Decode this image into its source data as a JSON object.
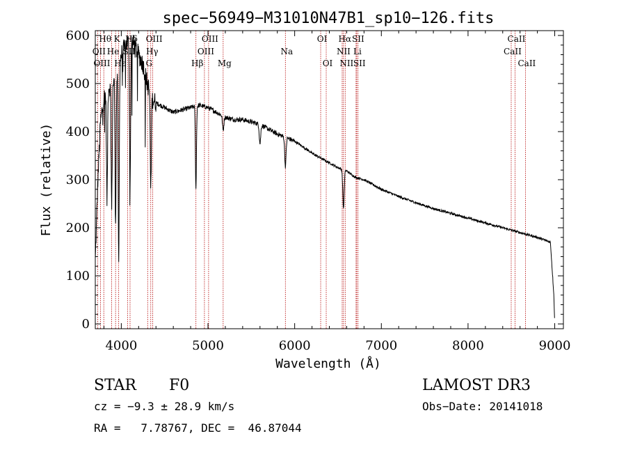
{
  "chart_data": {
    "type": "line",
    "title": "spec−56949−M31010N47B1_sp10−126.fits",
    "xlabel": "Wavelength (Å)",
    "ylabel": "Flux (relative)",
    "xlim": [
      3700,
      9100
    ],
    "ylim": [
      -10,
      610
    ],
    "xticks": [
      4000,
      5000,
      6000,
      7000,
      8000,
      9000
    ],
    "yticks": [
      0,
      100,
      200,
      300,
      400,
      500,
      600
    ],
    "grid": false,
    "colors": {
      "spectrum": "#000000",
      "line_marker": "#b30000",
      "frame": "#000000"
    },
    "continuum": {
      "x": [
        3700,
        3730,
        3760,
        3800,
        3850,
        3900,
        3950,
        4000,
        4050,
        4100,
        4150,
        4200,
        4250,
        4300,
        4350,
        4400,
        4500,
        4600,
        4700,
        4800,
        4900,
        5000,
        5100,
        5200,
        5300,
        5400,
        5500,
        5600,
        5700,
        5800,
        5900,
        6000,
        6100,
        6200,
        6300,
        6400,
        6500,
        6600,
        6700,
        6800,
        6900,
        7000,
        7200,
        7400,
        7600,
        7800,
        8000,
        8200,
        8400,
        8600,
        8800,
        8950,
        8990,
        9000
      ],
      "y": [
        130,
        300,
        420,
        470,
        490,
        500,
        520,
        560,
        580,
        590,
        580,
        560,
        540,
        500,
        470,
        460,
        450,
        440,
        445,
        450,
        455,
        450,
        440,
        430,
        425,
        425,
        420,
        415,
        405,
        395,
        388,
        380,
        368,
        355,
        345,
        335,
        325,
        318,
        305,
        300,
        290,
        280,
        265,
        252,
        240,
        230,
        220,
        210,
        200,
        190,
        180,
        170,
        60,
        0
      ]
    },
    "absorption_features": [
      {
        "x": 3835,
        "depth": 230
      },
      {
        "x": 3889,
        "depth": 260
      },
      {
        "x": 3934,
        "depth": 300
      },
      {
        "x": 3970,
        "depth": 420
      },
      {
        "x": 4101,
        "depth": 310
      },
      {
        "x": 4340,
        "depth": 200
      },
      {
        "x": 4861,
        "depth": 170
      },
      {
        "x": 5175,
        "depth": 30
      },
      {
        "x": 5600,
        "depth": 40
      },
      {
        "x": 5893,
        "depth": 60
      },
      {
        "x": 6563,
        "depth": 80
      }
    ],
    "line_markers": [
      {
        "label": "Hθ",
        "x": 3798,
        "row": 1
      },
      {
        "label": "OII",
        "x": 3727,
        "row": 2
      },
      {
        "label": "OIII",
        "x": 3760,
        "row": 3
      },
      {
        "label": "He",
        "x": 3889,
        "row": 2
      },
      {
        "label": "K",
        "x": 3934,
        "row": 1
      },
      {
        "label": "Hε",
        "x": 3970,
        "row": 3
      },
      {
        "label": "SII",
        "x": 4072,
        "row": 2
      },
      {
        "label": "Hδ",
        "x": 4101,
        "row": 1
      },
      {
        "label": "G",
        "x": 4304,
        "row": 3
      },
      {
        "label": "Hγ",
        "x": 4340,
        "row": 2
      },
      {
        "label": "OIII",
        "x": 4363,
        "row": 1
      },
      {
        "label": "Hβ",
        "x": 4861,
        "row": 3
      },
      {
        "label": "OIII",
        "x": 4959,
        "row": 2
      },
      {
        "label": "OIII",
        "x": 5007,
        "row": 1
      },
      {
        "label": "Mg",
        "x": 5175,
        "row": 3
      },
      {
        "label": "Na",
        "x": 5893,
        "row": 2
      },
      {
        "label": "OI",
        "x": 6300,
        "row": 1
      },
      {
        "label": "OI",
        "x": 6364,
        "row": 3
      },
      {
        "label": "NII",
        "x": 6548,
        "row": 2
      },
      {
        "label": "Hα",
        "x": 6563,
        "row": 1
      },
      {
        "label": "NII",
        "x": 6583,
        "row": 3
      },
      {
        "label": "Li",
        "x": 6708,
        "row": 2
      },
      {
        "label": "SII",
        "x": 6716,
        "row": 1
      },
      {
        "label": "SII",
        "x": 6731,
        "row": 3
      },
      {
        "label": "CaII",
        "x": 8498,
        "row": 2
      },
      {
        "label": "CaII",
        "x": 8542,
        "row": 1
      },
      {
        "label": "CaII",
        "x": 8662,
        "row": 3
      }
    ]
  },
  "info": {
    "class": "STAR",
    "subclass": "F0",
    "survey": "LAMOST DR3",
    "cz": "cz = −9.3 ± 28.9 km/s",
    "obs_date": "Obs−Date: 20141018",
    "radec": "RA =   7.78767, DEC =  46.87044"
  }
}
